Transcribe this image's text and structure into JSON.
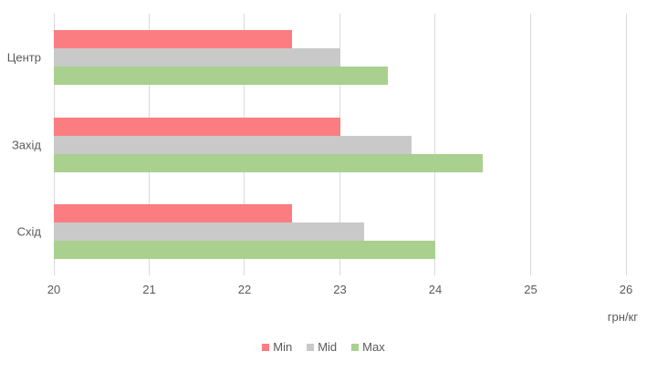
{
  "chart_data": {
    "type": "bar",
    "orientation": "horizontal",
    "title": "",
    "categories": [
      "Центр",
      "Захід",
      "Схід"
    ],
    "series": [
      {
        "name": "Min",
        "color": "#FC7D81",
        "values": [
          22.5,
          23,
          22.5
        ]
      },
      {
        "name": "Mid",
        "color": "#C9C9C9",
        "values": [
          23,
          23.75,
          23.25
        ]
      },
      {
        "name": "Max",
        "color": "#A9D08E",
        "values": [
          23.5,
          24.5,
          24
        ]
      }
    ],
    "xlabel": "грн/кг",
    "xlim": [
      20,
      26
    ],
    "x_ticks": [
      "20",
      "21",
      "22",
      "23",
      "24",
      "25",
      "26"
    ],
    "grid": true,
    "legend_position": "bottom-center"
  },
  "style": {
    "gridline_color": "#D9D9D9",
    "text_color": "#595959",
    "background": "#FFFFFF"
  }
}
